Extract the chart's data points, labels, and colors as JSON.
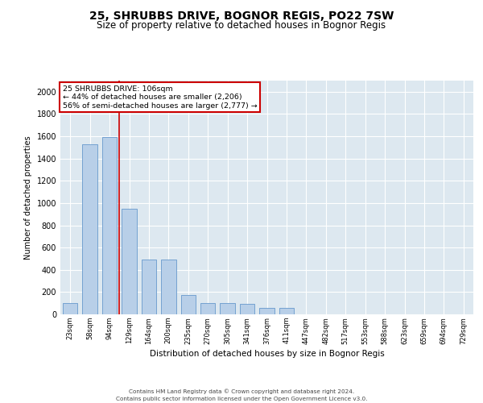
{
  "title_line1": "25, SHRUBBS DRIVE, BOGNOR REGIS, PO22 7SW",
  "title_line2": "Size of property relative to detached houses in Bognor Regis",
  "xlabel": "Distribution of detached houses by size in Bognor Regis",
  "ylabel": "Number of detached properties",
  "categories": [
    "23sqm",
    "58sqm",
    "94sqm",
    "129sqm",
    "164sqm",
    "200sqm",
    "235sqm",
    "270sqm",
    "305sqm",
    "341sqm",
    "376sqm",
    "411sqm",
    "447sqm",
    "482sqm",
    "517sqm",
    "553sqm",
    "588sqm",
    "623sqm",
    "659sqm",
    "694sqm",
    "729sqm"
  ],
  "values": [
    100,
    1530,
    1590,
    950,
    490,
    490,
    175,
    105,
    100,
    95,
    60,
    55,
    0,
    0,
    0,
    0,
    0,
    0,
    0,
    0,
    0
  ],
  "ylim": [
    0,
    2100
  ],
  "yticks": [
    0,
    200,
    400,
    600,
    800,
    1000,
    1200,
    1400,
    1600,
    1800,
    2000
  ],
  "bar_color": "#b8cfe8",
  "bar_edge_color": "#6699cc",
  "bg_color": "#dde8f0",
  "grid_color": "#ffffff",
  "vline_color": "#cc0000",
  "annotation_text": "25 SHRUBBS DRIVE: 106sqm\n← 44% of detached houses are smaller (2,206)\n56% of semi-detached houses are larger (2,777) →",
  "annotation_box_color": "#ffffff",
  "annotation_box_edge": "#cc0000",
  "footer_line1": "Contains HM Land Registry data © Crown copyright and database right 2024.",
  "footer_line2": "Contains public sector information licensed under the Open Government Licence v3.0.",
  "title_fontsize": 10,
  "subtitle_fontsize": 8.5,
  "bar_width": 0.75
}
